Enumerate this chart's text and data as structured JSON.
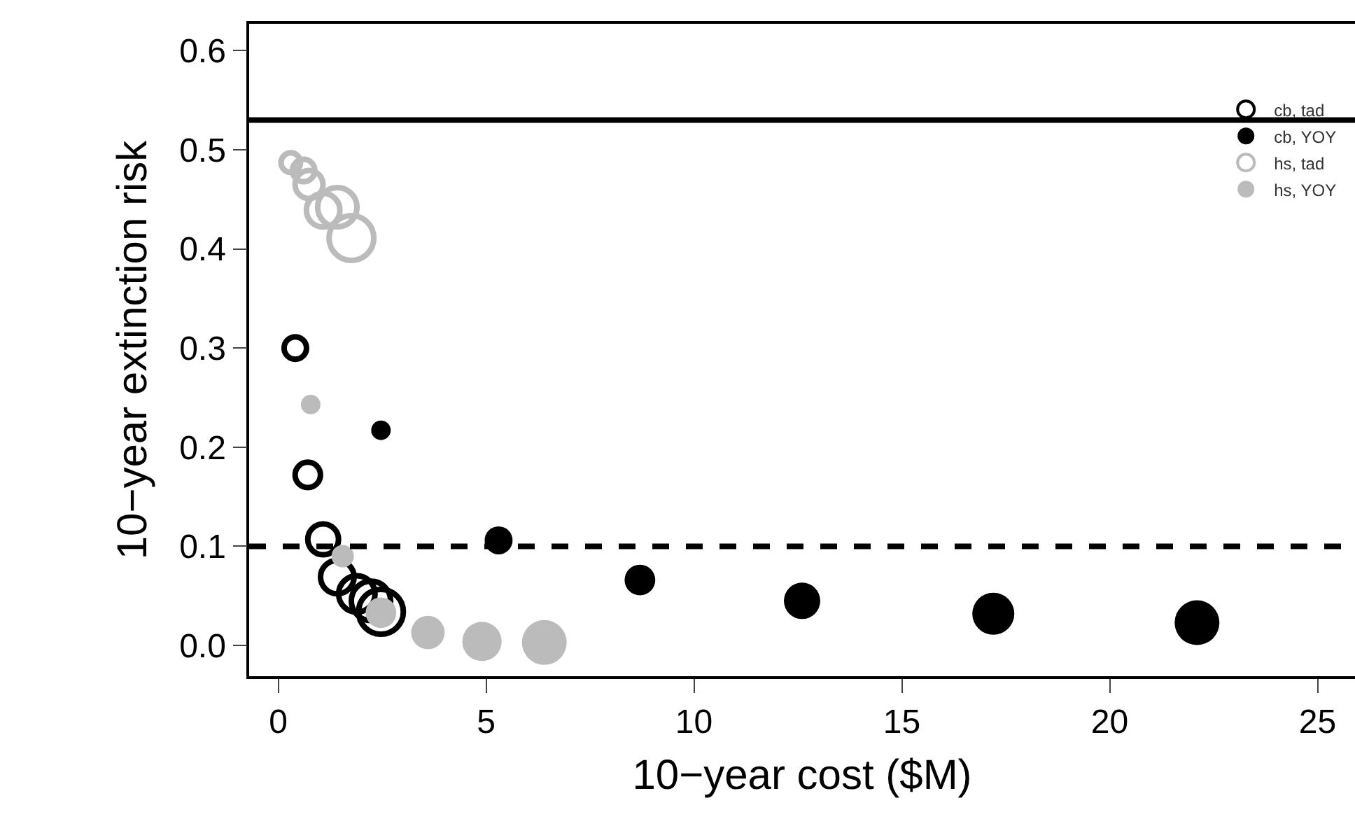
{
  "chart_data": {
    "type": "bubble",
    "xlabel": "10−year cost ($M)",
    "ylabel": "10−year extinction risk",
    "xlim": [
      -0.7,
      25.9
    ],
    "xticks": [
      0,
      5,
      10,
      15,
      20,
      25
    ],
    "ylim": [
      -0.031,
      0.627
    ],
    "yticks": [
      {
        "value": 0,
        "label": "0.0"
      },
      0.1,
      0.2,
      0.3,
      0.4,
      0.5,
      0.6
    ],
    "grid": false,
    "legend": "top right",
    "series": [
      {
        "name": "cb, tad",
        "color": "#000000",
        "marker": "circle-open",
        "x": [
          0.41,
          0.71,
          1.08,
          1.42,
          1.89,
          2.23,
          2.47
        ],
        "values": [
          0.3,
          0.172,
          0.107,
          0.069,
          0.052,
          0.045,
          0.034
        ],
        "sizes": [
          0.25,
          0.32,
          0.47,
          0.56,
          0.66,
          0.77,
          1
        ]
      },
      {
        "name": "cb, YOY",
        "color": "#000000",
        "marker": "circle",
        "x": [
          2.47,
          5.3,
          8.7,
          12.6,
          17.2,
          22.1
        ],
        "values": [
          0.217,
          0.106,
          0.066,
          0.045,
          0.032,
          0.023
        ],
        "sizes": [
          0.19,
          0.39,
          0.47,
          0.66,
          0.88,
          1
        ]
      },
      {
        "name": "hs, tad",
        "color": "#bbbbbb",
        "marker": "circle-open",
        "x": [
          0.3,
          0.61,
          0.74,
          1.08,
          1.42,
          1.76
        ],
        "values": [
          0.487,
          0.479,
          0.465,
          0.439,
          0.442,
          0.411
        ],
        "sizes": [
          0.19,
          0.25,
          0.39,
          0.56,
          0.77,
          1
        ]
      },
      {
        "name": "hs, YOY",
        "color": "#bbbbbb",
        "marker": "circle",
        "x": [
          0.78,
          1.55,
          2.47,
          3.6,
          4.9,
          6.4
        ],
        "values": [
          0.243,
          0.09,
          0.033,
          0.013,
          0.004,
          0.003
        ],
        "sizes": [
          0.19,
          0.25,
          0.47,
          0.56,
          0.77,
          1
        ]
      }
    ],
    "ref_lines": [
      {
        "axis": "y",
        "value": 0.53,
        "line_style": "solid",
        "color": "#000000"
      },
      {
        "axis": "y",
        "value": 0.1,
        "line_style": "dashed",
        "color": "#000000"
      }
    ]
  }
}
